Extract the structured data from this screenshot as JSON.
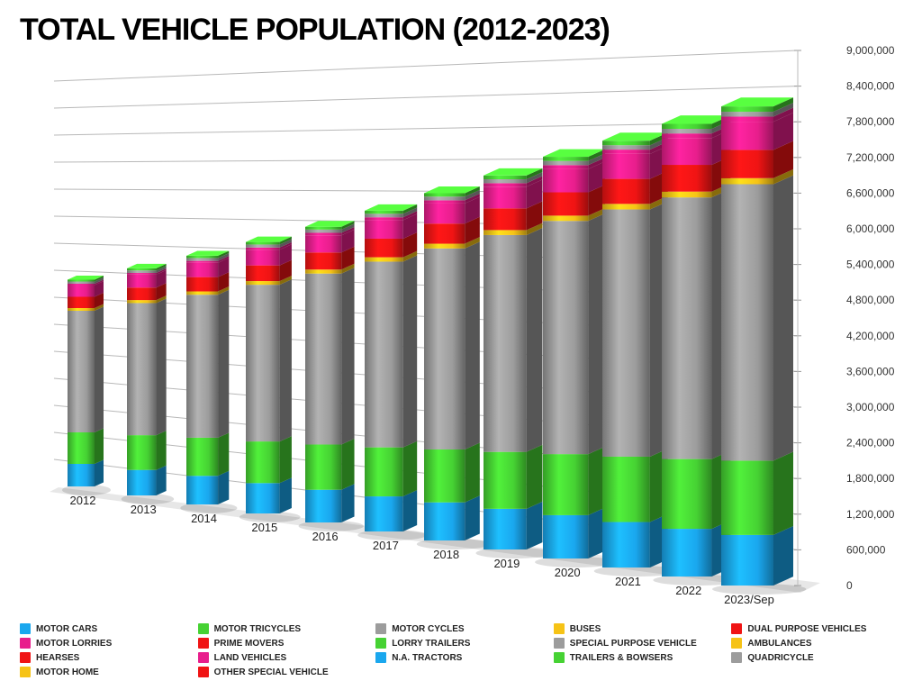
{
  "title": {
    "text": "TOTAL VEHICLE POPULATION (2012-2023)",
    "fontsize": 34,
    "fontweight": 900,
    "color": "#000000"
  },
  "chart": {
    "type": "3d-stacked-bar",
    "background_color": "#ffffff",
    "grid_color": "#b8b8b8",
    "floor_color": "#d9d9d9",
    "categories": [
      "2012",
      "2013",
      "2014",
      "2015",
      "2016",
      "2017",
      "2018",
      "2019",
      "2020",
      "2021",
      "2022",
      "2023/Sep"
    ],
    "category_fontsize": 13,
    "y_axis": {
      "min": 0,
      "max": 9000000,
      "tick_step": 600000,
      "ticks": [
        "0",
        "600,000",
        "1,200,000",
        "1,800,000",
        "2,400,000",
        "3,000,000",
        "3,600,000",
        "4,200,000",
        "4,800,000",
        "5,400,000",
        "6,000,000",
        "6,600,000",
        "7,200,000",
        "7,800,000",
        "8,400,000",
        "9,000,000"
      ],
      "fontsize": 12,
      "color": "#333333"
    },
    "stacks": [
      {
        "key": "motor_cars",
        "color": "#1aa7ee",
        "values": [
          500000,
          550000,
          600000,
          620000,
          650000,
          680000,
          720000,
          750000,
          780000,
          800000,
          820000,
          850000
        ]
      },
      {
        "key": "motor_tricycles",
        "color": "#46d233",
        "values": [
          700000,
          750000,
          800000,
          850000,
          900000,
          950000,
          1000000,
          1050000,
          1100000,
          1150000,
          1200000,
          1250000
        ]
      },
      {
        "key": "motor_cycles",
        "color": "#9c9c9c",
        "values": [
          2700000,
          2850000,
          3000000,
          3200000,
          3400000,
          3600000,
          3800000,
          4000000,
          4200000,
          4350000,
          4500000,
          4650000
        ]
      },
      {
        "key": "buses",
        "color": "#f6c316",
        "values": [
          60000,
          65000,
          70000,
          75000,
          80000,
          85000,
          90000,
          92000,
          95000,
          98000,
          100000,
          102000
        ]
      },
      {
        "key": "dual_purpose",
        "color": "#f01414",
        "values": [
          250000,
          270000,
          300000,
          320000,
          340000,
          360000,
          380000,
          400000,
          420000,
          440000,
          460000,
          475000
        ]
      },
      {
        "key": "motor_lorries",
        "color": "#e81e8c",
        "values": [
          260000,
          280000,
          300000,
          320000,
          340000,
          360000,
          380000,
          400000,
          420000,
          440000,
          460000,
          475000
        ]
      },
      {
        "key": "land_vehicles",
        "color": "#e81e8c",
        "values": [
          30000,
          35000,
          40000,
          45000,
          50000,
          55000,
          60000,
          65000,
          70000,
          75000,
          80000,
          85000
        ]
      },
      {
        "key": "special_purpose",
        "color": "#9c9c9c",
        "values": [
          50000,
          55000,
          60000,
          62000,
          65000,
          68000,
          70000,
          72000,
          75000,
          77000,
          80000,
          82000
        ]
      },
      {
        "key": "trailers_bowsers",
        "color": "#46d233",
        "values": [
          40000,
          44000,
          48000,
          52000,
          56000,
          60000,
          65000,
          70000,
          75000,
          80000,
          85000,
          90000
        ]
      }
    ],
    "totals": [
      4590000,
      4899000,
      5218000,
      5544000,
      5881000,
      6218000,
      6565000,
      6899000,
      7235000,
      7510000,
      7785000,
      8059000
    ]
  },
  "legend": {
    "fontsize": 10,
    "items": [
      {
        "label": "MOTOR CARS",
        "color": "#1aa7ee"
      },
      {
        "label": "MOTOR TRICYCLES",
        "color": "#46d233"
      },
      {
        "label": "MOTOR CYCLES",
        "color": "#9c9c9c"
      },
      {
        "label": "BUSES",
        "color": "#f6c316"
      },
      {
        "label": "DUAL PURPOSE VEHICLES",
        "color": "#f01414"
      },
      {
        "label": "MOTOR LORRIES",
        "color": "#e81e8c"
      },
      {
        "label": "PRIME MOVERS",
        "color": "#f01414"
      },
      {
        "label": "LORRY TRAILERS",
        "color": "#46d233"
      },
      {
        "label": "SPECIAL PURPOSE VEHICLE",
        "color": "#9c9c9c"
      },
      {
        "label": "AMBULANCES",
        "color": "#f6c316"
      },
      {
        "label": "HEARSES",
        "color": "#f01414"
      },
      {
        "label": "LAND VEHICLES",
        "color": "#e81e8c"
      },
      {
        "label": "N.A. TRACTORS",
        "color": "#1aa7ee"
      },
      {
        "label": "TRAILERS & BOWSERS",
        "color": "#46d233"
      },
      {
        "label": "QUADRICYCLE",
        "color": "#9c9c9c"
      },
      {
        "label": "MOTOR HOME",
        "color": "#f6c316"
      },
      {
        "label": "OTHER SPECIAL VEHICLE",
        "color": "#f01414"
      }
    ]
  }
}
